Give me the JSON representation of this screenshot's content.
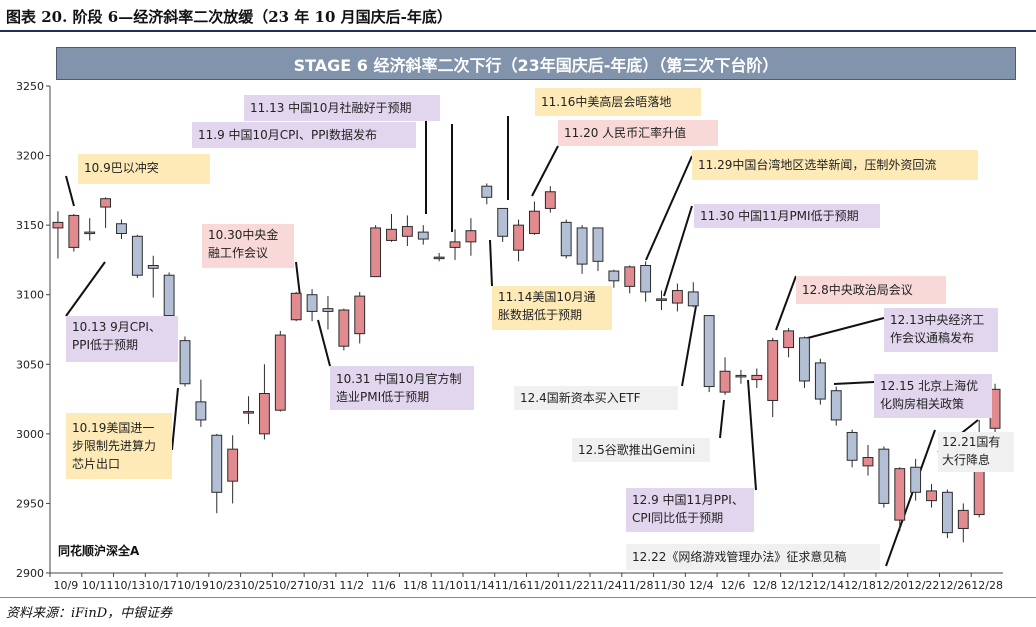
{
  "figure_title": "图表 20. 阶段 6—经济斜率二次放缓（23 年 10 月国庆后-年底）",
  "source": "资料来源：iFinD，中银证券",
  "watermark": "同花顺沪深全A",
  "chart_data": {
    "type": "candlestick",
    "title": "STAGE 6 经济斜率二次下行（23年国庆后-年底）（第三次下台阶）",
    "ylim": [
      2900,
      3250
    ],
    "yticks": [
      2900,
      2950,
      3000,
      3050,
      3100,
      3150,
      3200,
      3250
    ],
    "xtick_labels": [
      "10/9",
      "10/11",
      "10/13",
      "10/17",
      "10/19",
      "10/23",
      "10/25",
      "10/27",
      "10/31",
      "11/2",
      "11/6",
      "11/8",
      "11/10",
      "11/14",
      "11/16",
      "11/20",
      "11/22",
      "11/24",
      "11/28",
      "11/30",
      "12/4",
      "12/6",
      "12/8",
      "12/12",
      "12/14",
      "12/18",
      "12/20",
      "12/22",
      "12/26",
      "12/28"
    ],
    "colors": {
      "up": "#e18a8f",
      "down": "#b3bfd4",
      "edge": "#2b2b2b"
    },
    "candles": [
      {
        "o": 3148,
        "c": 3152,
        "h": 3160,
        "l": 3126
      },
      {
        "o": 3134,
        "c": 3157,
        "h": 3158,
        "l": 3131
      },
      {
        "o": 3145,
        "c": 3144,
        "h": 3155,
        "l": 3139
      },
      {
        "o": 3163,
        "c": 3169,
        "h": 3170,
        "l": 3148
      },
      {
        "o": 3151,
        "c": 3144,
        "h": 3154,
        "l": 3140
      },
      {
        "o": 3142,
        "c": 3114,
        "h": 3143,
        "l": 3112
      },
      {
        "o": 3121,
        "c": 3119,
        "h": 3128,
        "l": 3098
      },
      {
        "o": 3114,
        "c": 3085,
        "h": 3116,
        "l": 3080
      },
      {
        "o": 3067,
        "c": 3036,
        "h": 3070,
        "l": 3034
      },
      {
        "o": 3023,
        "c": 3010,
        "h": 3039,
        "l": 3005
      },
      {
        "o": 2999,
        "c": 2958,
        "h": 3000,
        "l": 2943
      },
      {
        "o": 2966,
        "c": 2989,
        "h": 2999,
        "l": 2950
      },
      {
        "o": 3016,
        "c": 3016,
        "h": 3027,
        "l": 3007
      },
      {
        "o": 3000,
        "c": 3029,
        "h": 3050,
        "l": 2996
      },
      {
        "o": 3017,
        "c": 3071,
        "h": 3074,
        "l": 3016
      },
      {
        "o": 3082,
        "c": 3101,
        "h": 3102,
        "l": 3081
      },
      {
        "o": 3100,
        "c": 3088,
        "h": 3104,
        "l": 3081
      },
      {
        "o": 3090,
        "c": 3088,
        "h": 3099,
        "l": 3075
      },
      {
        "o": 3063,
        "c": 3089,
        "h": 3090,
        "l": 3060
      },
      {
        "o": 3072,
        "c": 3099,
        "h": 3102,
        "l": 3065
      },
      {
        "o": 3113,
        "c": 3148,
        "h": 3150,
        "l": 3113
      },
      {
        "o": 3139,
        "c": 3147,
        "h": 3158,
        "l": 3138
      },
      {
        "o": 3142,
        "c": 3149,
        "h": 3157,
        "l": 3135
      },
      {
        "o": 3145,
        "c": 3140,
        "h": 3150,
        "l": 3136
      },
      {
        "o": 3127,
        "c": 3127,
        "h": 3130,
        "l": 3124
      },
      {
        "o": 3134,
        "c": 3138,
        "h": 3147,
        "l": 3125
      },
      {
        "o": 3138,
        "c": 3146,
        "h": 3155,
        "l": 3128
      },
      {
        "o": 3178,
        "c": 3170,
        "h": 3180,
        "l": 3165
      },
      {
        "o": 3162,
        "c": 3142,
        "h": 3162,
        "l": 3138
      },
      {
        "o": 3132,
        "c": 3150,
        "h": 3154,
        "l": 3124
      },
      {
        "o": 3144,
        "c": 3160,
        "h": 3167,
        "l": 3143
      },
      {
        "o": 3162,
        "c": 3174,
        "h": 3178,
        "l": 3159
      },
      {
        "o": 3152,
        "c": 3128,
        "h": 3154,
        "l": 3126
      },
      {
        "o": 3148,
        "c": 3122,
        "h": 3150,
        "l": 3115
      },
      {
        "o": 3148,
        "c": 3124,
        "h": 3148,
        "l": 3117
      },
      {
        "o": 3117,
        "c": 3110,
        "h": 3118,
        "l": 3105
      },
      {
        "o": 3106,
        "c": 3120,
        "h": 3121,
        "l": 3101
      },
      {
        "o": 3121,
        "c": 3102,
        "h": 3124,
        "l": 3095
      },
      {
        "o": 3097,
        "c": 3097,
        "h": 3103,
        "l": 3089
      },
      {
        "o": 3094,
        "c": 3103,
        "h": 3108,
        "l": 3088
      },
      {
        "o": 3102,
        "c": 3092,
        "h": 3109,
        "l": 3091
      },
      {
        "o": 3085,
        "c": 3034,
        "h": 3085,
        "l": 3030
      },
      {
        "o": 3030,
        "c": 3045,
        "h": 3055,
        "l": 3028
      },
      {
        "o": 3042,
        "c": 3041,
        "h": 3046,
        "l": 3036
      },
      {
        "o": 3039,
        "c": 3042,
        "h": 3047,
        "l": 3033
      },
      {
        "o": 3024,
        "c": 3067,
        "h": 3069,
        "l": 3012
      },
      {
        "o": 3062,
        "c": 3074,
        "h": 3076,
        "l": 3055
      },
      {
        "o": 3069,
        "c": 3038,
        "h": 3070,
        "l": 3033
      },
      {
        "o": 3051,
        "c": 3025,
        "h": 3054,
        "l": 3021
      },
      {
        "o": 3031,
        "c": 3010,
        "h": 3034,
        "l": 3006
      },
      {
        "o": 3001,
        "c": 2981,
        "h": 3003,
        "l": 2976
      },
      {
        "o": 2977,
        "c": 2983,
        "h": 2992,
        "l": 2970
      },
      {
        "o": 2989,
        "c": 2950,
        "h": 2991,
        "l": 2947
      },
      {
        "o": 2938,
        "c": 2975,
        "h": 2976,
        "l": 2930
      },
      {
        "o": 2976,
        "c": 2958,
        "h": 2982,
        "l": 2952
      },
      {
        "o": 2952,
        "c": 2959,
        "h": 2964,
        "l": 2947
      },
      {
        "o": 2958,
        "c": 2929,
        "h": 2960,
        "l": 2925
      },
      {
        "o": 2932,
        "c": 2945,
        "h": 2950,
        "l": 2922
      },
      {
        "o": 2942,
        "c": 3000,
        "h": 3010,
        "l": 2940
      },
      {
        "o": 3004,
        "c": 3032,
        "h": 3036,
        "l": 3001
      }
    ],
    "annotations": [
      {
        "text": "10.9巴以冲突",
        "color": "yellow"
      },
      {
        "text": "10.13 9月CPI、PPI低于预期",
        "color": "purple"
      },
      {
        "text": "10.19美国进一步限制先进算力芯片出口",
        "color": "yellow"
      },
      {
        "text": "10.30中央金融工作会议",
        "color": "pink"
      },
      {
        "text": "10.31 中国10月官方制造业PMI低于预期",
        "color": "purple"
      },
      {
        "text": "11.13 中国10月社融好于预期",
        "color": "purple"
      },
      {
        "text": "11.9 中国10月CPI、PPI数据发布",
        "color": "purple"
      },
      {
        "text": "11.14美国10月通胀数据低于预期",
        "color": "yellow"
      },
      {
        "text": "11.16中美高层会晤落地",
        "color": "yellow"
      },
      {
        "text": "11.20 人民币汇率升值",
        "color": "pink"
      },
      {
        "text": "11.29中国台湾地区选举新闻，压制外资回流",
        "color": "yellow"
      },
      {
        "text": "11.30 中国11月PMI低于预期",
        "color": "purple"
      },
      {
        "text": "12.4国新资本买入ETF",
        "color": "grey"
      },
      {
        "text": "12.5谷歌推出Gemini",
        "color": "grey"
      },
      {
        "text": "12.9 中国11月PPI、CPI同比低于预期",
        "color": "purple"
      },
      {
        "text": "12.8中央政治局会议",
        "color": "pink"
      },
      {
        "text": "12.13中央经济工作会议通稿发布",
        "color": "purple"
      },
      {
        "text": "12.15 北京上海优化购房相关政策",
        "color": "purple"
      },
      {
        "text": "12.21国有大行降息",
        "color": "grey"
      },
      {
        "text": "12.22《网络游戏管理办法》征求意见稿",
        "color": "grey"
      }
    ]
  }
}
